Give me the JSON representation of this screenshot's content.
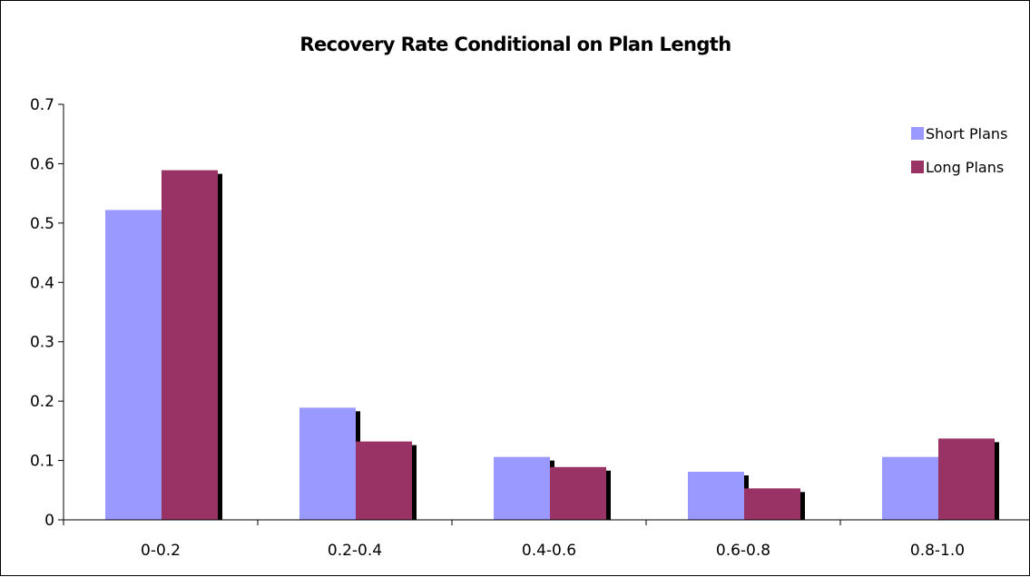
{
  "chart_data": {
    "type": "bar",
    "title": "Recovery Rate Conditional on Plan Length",
    "xlabel": "",
    "ylabel": "",
    "categories": [
      "0-0.2",
      "0.2-0.4",
      "0.4-0.6",
      "0.6-0.8",
      "0.8-1.0"
    ],
    "series": [
      {
        "name": "Short Plans",
        "color": "#9999ff",
        "values": [
          0.522,
          0.189,
          0.106,
          0.081,
          0.106
        ]
      },
      {
        "name": "Long Plans",
        "color": "#993366",
        "values": [
          0.589,
          0.132,
          0.089,
          0.053,
          0.137
        ]
      }
    ],
    "ylim": [
      0,
      0.7
    ],
    "yticks": [
      "0",
      "0.1",
      "0.2",
      "0.3",
      "0.4",
      "0.5",
      "0.6",
      "0.7"
    ],
    "grid": false,
    "legend_position": "top-right",
    "bar_shadow_color": "#000000"
  }
}
